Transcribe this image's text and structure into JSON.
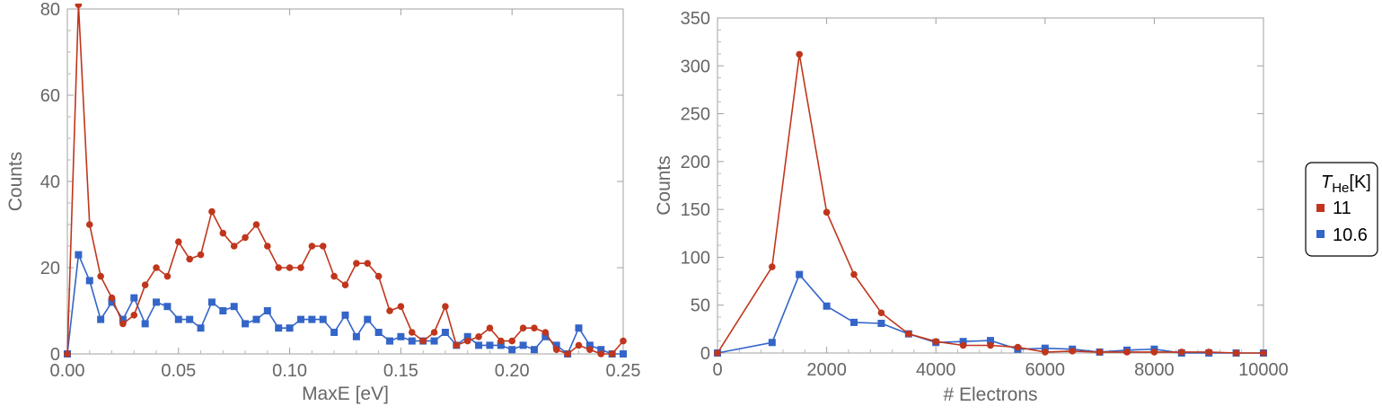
{
  "legend": {
    "title_main": "T",
    "title_sub": "He",
    "title_unit": "[K]",
    "entries": [
      {
        "label": "11",
        "color": "#c0361c",
        "marker": "square"
      },
      {
        "label": "10.6",
        "color": "#3465c8",
        "marker": "square"
      }
    ]
  },
  "chart_data": [
    {
      "type": "line",
      "xlabel": "MaxE [eV]",
      "ylabel": "Counts",
      "xlim": [
        0,
        0.25
      ],
      "ylim": [
        0,
        80
      ],
      "xticks": [
        "0.00",
        "0.05",
        "0.10",
        "0.15",
        "0.20",
        "0.25"
      ],
      "yticks": [
        "0",
        "20",
        "40",
        "60",
        "80"
      ],
      "grid": false,
      "series": [
        {
          "name": "11",
          "color": "#c0361c",
          "marker": "circle",
          "x": [
            0.0,
            0.005,
            0.01,
            0.015,
            0.02,
            0.025,
            0.03,
            0.035,
            0.04,
            0.045,
            0.05,
            0.055,
            0.06,
            0.065,
            0.07,
            0.075,
            0.08,
            0.085,
            0.09,
            0.095,
            0.1,
            0.105,
            0.11,
            0.115,
            0.12,
            0.125,
            0.13,
            0.135,
            0.14,
            0.145,
            0.15,
            0.155,
            0.16,
            0.165,
            0.17,
            0.175,
            0.18,
            0.185,
            0.19,
            0.195,
            0.2,
            0.205,
            0.21,
            0.215,
            0.22,
            0.225,
            0.23,
            0.235,
            0.24,
            0.245,
            0.25
          ],
          "y": [
            0,
            81,
            30,
            18,
            13,
            7,
            9,
            16,
            20,
            18,
            26,
            22,
            23,
            33,
            28,
            25,
            27,
            30,
            25,
            20,
            20,
            20,
            25,
            25,
            18,
            16,
            21,
            21,
            18,
            10,
            11,
            5,
            3,
            5,
            11,
            2,
            3,
            4,
            6,
            3,
            3,
            6,
            6,
            5,
            1,
            0,
            2,
            1,
            0,
            0,
            3
          ]
        },
        {
          "name": "10.6",
          "color": "#3465c8",
          "marker": "square",
          "x": [
            0.0,
            0.005,
            0.01,
            0.015,
            0.02,
            0.025,
            0.03,
            0.035,
            0.04,
            0.045,
            0.05,
            0.055,
            0.06,
            0.065,
            0.07,
            0.075,
            0.08,
            0.085,
            0.09,
            0.095,
            0.1,
            0.105,
            0.11,
            0.115,
            0.12,
            0.125,
            0.13,
            0.135,
            0.14,
            0.145,
            0.15,
            0.155,
            0.16,
            0.165,
            0.17,
            0.175,
            0.18,
            0.185,
            0.19,
            0.195,
            0.2,
            0.205,
            0.21,
            0.215,
            0.22,
            0.225,
            0.23,
            0.235,
            0.24,
            0.245,
            0.25
          ],
          "y": [
            0,
            23,
            17,
            8,
            12,
            8,
            13,
            7,
            12,
            11,
            8,
            8,
            6,
            12,
            10,
            11,
            7,
            8,
            10,
            6,
            6,
            8,
            8,
            8,
            5,
            9,
            4,
            8,
            5,
            3,
            4,
            3,
            3,
            3,
            5,
            2,
            4,
            2,
            2,
            2,
            1,
            2,
            1,
            4,
            2,
            0,
            6,
            2,
            1,
            0,
            0
          ]
        }
      ]
    },
    {
      "type": "line",
      "xlabel": "# Electrons",
      "ylabel": "Counts",
      "xlim": [
        0,
        10000
      ],
      "ylim": [
        0,
        350
      ],
      "xticks": [
        "0",
        "2000",
        "4000",
        "6000",
        "8000",
        "10000"
      ],
      "yticks": [
        "0",
        "50",
        "100",
        "150",
        "200",
        "250",
        "300",
        "350"
      ],
      "grid": false,
      "series": [
        {
          "name": "11",
          "color": "#c0361c",
          "marker": "circle",
          "x": [
            0,
            1000,
            1500,
            2000,
            2500,
            3000,
            3500,
            4000,
            4500,
            5000,
            5500,
            6000,
            6500,
            7000,
            7500,
            8000,
            8500,
            9000,
            9500,
            10000
          ],
          "y": [
            0,
            90,
            312,
            147,
            82,
            42,
            20,
            12,
            8,
            8,
            6,
            1,
            2,
            1,
            1,
            1,
            1,
            1,
            0,
            0
          ]
        },
        {
          "name": "10.6",
          "color": "#3465c8",
          "marker": "square",
          "x": [
            0,
            1000,
            1500,
            2000,
            2500,
            3000,
            3500,
            4000,
            4500,
            5000,
            5500,
            6000,
            6500,
            7000,
            7500,
            8000,
            8500,
            9000,
            9500,
            10000
          ],
          "y": [
            0,
            11,
            82,
            49,
            32,
            31,
            20,
            11,
            12,
            13,
            4,
            5,
            4,
            1,
            3,
            4,
            0,
            0,
            0,
            0
          ]
        }
      ]
    }
  ]
}
